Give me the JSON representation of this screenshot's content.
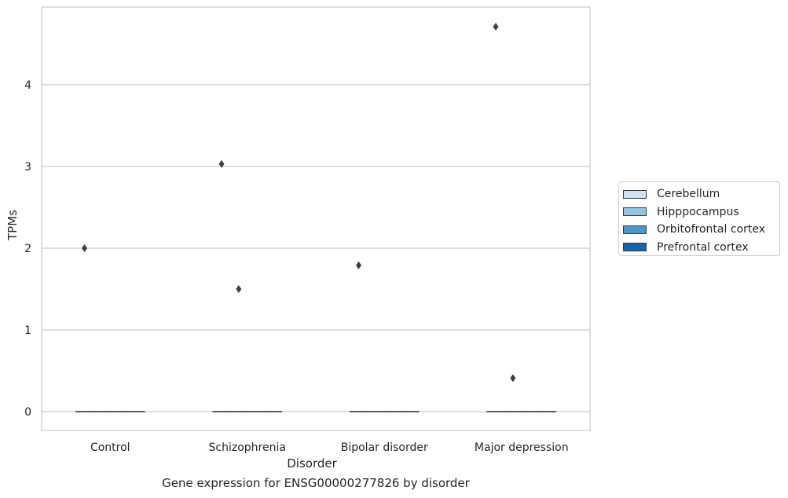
{
  "chart_data": {
    "type": "box",
    "title": "Gene expression for ENSG00000277826 by disorder",
    "xlabel": "Disorder",
    "ylabel": "TPMs",
    "categories": [
      "Control",
      "Schizophrenia",
      "Bipolar disorder",
      "Major depression"
    ],
    "y_ticks": [
      0,
      1,
      2,
      3,
      4
    ],
    "ylim": [
      -0.23,
      4.95
    ],
    "grid": "horizontal",
    "legend_position": "right",
    "series": [
      {
        "name": "Cerebellum",
        "color": "#d0e1f2",
        "boxes": [
          {
            "q1": 0,
            "median": 0,
            "q3": 0,
            "outliers": [
              2.0
            ]
          },
          {
            "q1": 0,
            "median": 0,
            "q3": 0,
            "outliers": [
              3.03
            ]
          },
          {
            "q1": 0,
            "median": 0,
            "q3": 0,
            "outliers": [
              1.79
            ]
          },
          {
            "q1": 0,
            "median": 0,
            "q3": 0,
            "outliers": [
              4.71
            ]
          }
        ]
      },
      {
        "name": "Hipppocampus",
        "color": "#94c4df",
        "boxes": [
          {
            "q1": 0,
            "median": 0,
            "q3": 0,
            "outliers": []
          },
          {
            "q1": 0,
            "median": 0,
            "q3": 0,
            "outliers": [
              1.5
            ]
          },
          {
            "q1": 0,
            "median": 0,
            "q3": 0,
            "outliers": []
          },
          {
            "q1": 0,
            "median": 0,
            "q3": 0,
            "outliers": [
              0.41
            ]
          }
        ]
      },
      {
        "name": "Orbitofrontal cortex",
        "color": "#4a98c9",
        "boxes": [
          {
            "q1": 0,
            "median": 0,
            "q3": 0,
            "outliers": []
          },
          {
            "q1": 0,
            "median": 0,
            "q3": 0,
            "outliers": []
          },
          {
            "q1": 0,
            "median": 0,
            "q3": 0,
            "outliers": []
          },
          {
            "q1": 0,
            "median": 0,
            "q3": 0,
            "outliers": []
          }
        ]
      },
      {
        "name": "Prefrontal cortex",
        "color": "#1764ab",
        "boxes": [
          {
            "q1": 0,
            "median": 0,
            "q3": 0,
            "outliers": []
          },
          {
            "q1": 0,
            "median": 0,
            "q3": 0,
            "outliers": []
          },
          {
            "q1": 0,
            "median": 0,
            "q3": 0,
            "outliers": []
          },
          {
            "q1": 0,
            "median": 0,
            "q3": 0,
            "outliers": []
          }
        ]
      }
    ]
  }
}
